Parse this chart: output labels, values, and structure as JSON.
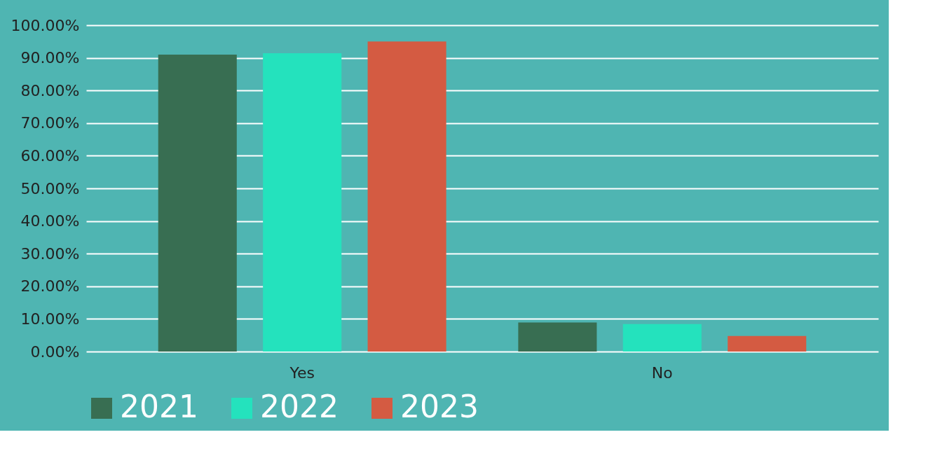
{
  "chart_data": {
    "type": "bar",
    "categories": [
      "Yes",
      "No"
    ],
    "series": [
      {
        "name": "2021",
        "color": "#386e52",
        "values": [
          91.0,
          8.9
        ]
      },
      {
        "name": "2022",
        "color": "#24e2bd",
        "values": [
          91.4,
          8.4
        ]
      },
      {
        "name": "2023",
        "color": "#d45b42",
        "values": [
          95.0,
          4.8
        ]
      }
    ],
    "ylim": [
      0,
      100
    ],
    "yticks": [
      {
        "value": 0,
        "label": "0.00%"
      },
      {
        "value": 10,
        "label": "10.00%"
      },
      {
        "value": 20,
        "label": "20.00%"
      },
      {
        "value": 30,
        "label": "30.00%"
      },
      {
        "value": 40,
        "label": "40.00%"
      },
      {
        "value": 50,
        "label": "50.00%"
      },
      {
        "value": 60,
        "label": "60.00%"
      },
      {
        "value": 70,
        "label": "70.00%"
      },
      {
        "value": 80,
        "label": "80.00%"
      },
      {
        "value": 90,
        "label": "90.00%"
      },
      {
        "value": 100,
        "label": "100.00%"
      }
    ],
    "grid": "y",
    "legend": "bottom"
  }
}
